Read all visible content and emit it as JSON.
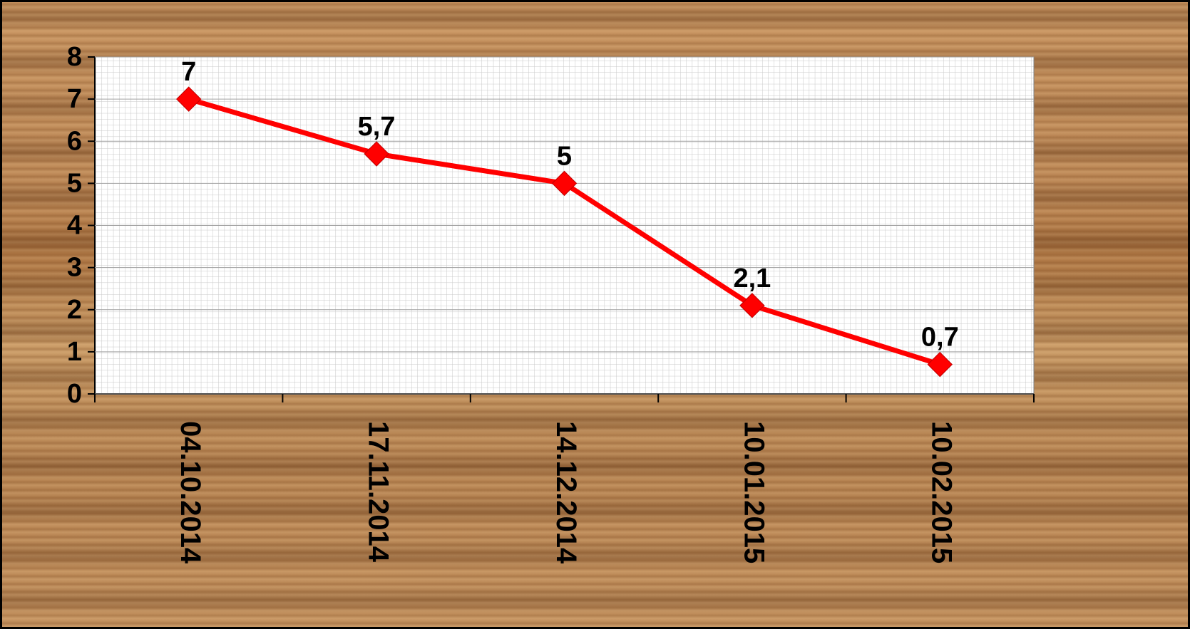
{
  "chart_data": {
    "type": "line",
    "categories": [
      "04.10.2014",
      "17.11.2014",
      "14.12.2014",
      "10.01.2015",
      "10.02.2015"
    ],
    "series": [
      {
        "color": "#ff0000",
        "values": [
          7,
          5.7,
          5,
          2.1,
          0.7
        ],
        "value_labels": [
          "7",
          "5,7",
          "5",
          "2,1",
          "0,7"
        ]
      }
    ],
    "ylim": [
      0,
      8
    ],
    "yticks": [
      0,
      1,
      2,
      3,
      4,
      5,
      6,
      7,
      8
    ],
    "grid": true
  }
}
